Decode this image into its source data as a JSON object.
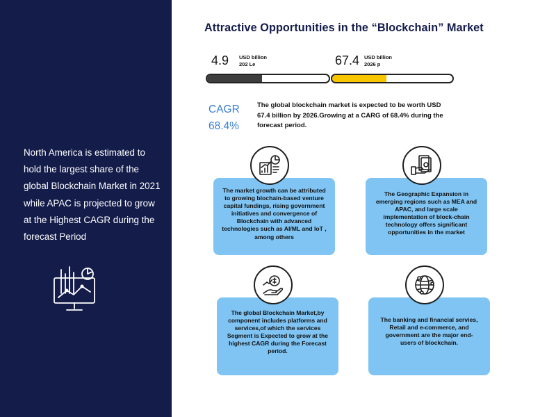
{
  "sidebar": {
    "text": "North America is estimated to hold  the largest share of the global Blockchain Market in 2021 while APAC is projected to grow at the Highest CAGR during the forecast Period",
    "icon": "analytics-dashboard-icon"
  },
  "title": "Attractive Opportunities in the “Blockchain” Market",
  "metrics": [
    {
      "value": "4.9",
      "unit": "USD billion",
      "year": "202 Le",
      "progress": 0.45,
      "color": "#3d3d3d"
    },
    {
      "value": "67.4",
      "unit": "USD billion",
      "year": "2026 p",
      "progress": 0.45,
      "color": "#f7c600"
    }
  ],
  "cagr": {
    "label": "CAGR",
    "value": "68.4%",
    "text": "The global blockchain market is expected to be worth USD 67.4 billion by 2026.Growing at a CARG of 68.4% during the forecast period."
  },
  "cards": [
    {
      "icon": "growth-report-icon",
      "text": "The market growth can be attributed to growing blochain-based venture capital fundings, rising government initiatives and convergence of Blockchain with advanced technologies such as AI/ML and IoT , among others"
    },
    {
      "icon": "money-in-hand-icon",
      "text": "The Geographic Expansion in emerging regions such as MEA and APAC, and large scale implementation of block-chain technology offers significant opportunities in the market"
    },
    {
      "icon": "investment-growth-icon",
      "text": "The global Blockchain Market,by component includes platforms and services,of which the services Segment is Expected to grow at the highest CAGR during the Forecast period."
    },
    {
      "icon": "global-network-icon",
      "text": "The banking and financial servies, Retail and e-commerce, and government are the major end- users of blockchain."
    }
  ],
  "colors": {
    "navy": "#141c4a",
    "card": "#7fc4f3",
    "accent_blue": "#3a7fd0",
    "yellow": "#f7c600",
    "dark_bar": "#3d3d3d"
  }
}
